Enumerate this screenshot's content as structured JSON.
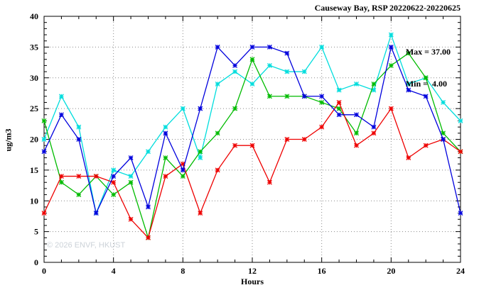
{
  "header": {
    "title": "Causeway Bay, RSP 20220622-20220625"
  },
  "annotation": {
    "max_label": "Max = 37.00",
    "min_label": "Min =  4.00"
  },
  "watermark": "© 2026 ENVF, HKUST",
  "chart_data": {
    "type": "line",
    "title": "Causeway Bay, RSP 20220622-20220625",
    "xlabel": "Hours",
    "ylabel": "ug/m3",
    "xlim": [
      0,
      24
    ],
    "ylim": [
      0,
      40
    ],
    "xticks": [
      0,
      4,
      8,
      12,
      16,
      20,
      24
    ],
    "yticks": [
      0,
      5,
      10,
      15,
      20,
      25,
      30,
      35,
      40
    ],
    "x_minor_step": 1,
    "y_minor_step": 1,
    "grid": true,
    "legend": "none",
    "x": [
      0,
      1,
      2,
      3,
      4,
      5,
      6,
      7,
      8,
      9,
      10,
      11,
      12,
      13,
      14,
      15,
      16,
      17,
      18,
      19,
      20,
      21,
      22,
      23,
      24
    ],
    "series": [
      {
        "name": "cyan",
        "color": "#00dddd",
        "values": [
          20,
          27,
          22,
          8,
          15,
          14,
          18,
          22,
          25,
          17,
          29,
          31,
          29,
          32,
          31,
          31,
          35,
          28,
          29,
          28,
          37,
          29,
          30,
          26,
          23
        ]
      },
      {
        "name": "green",
        "color": "#00bb00",
        "values": [
          23,
          13,
          11,
          14,
          11,
          13,
          4,
          17,
          14,
          18,
          21,
          25,
          33,
          27,
          27,
          27,
          26,
          25,
          21,
          29,
          32,
          34,
          30,
          21,
          18
        ]
      },
      {
        "name": "red",
        "color": "#ee0000",
        "values": [
          8,
          14,
          14,
          14,
          13,
          7,
          4,
          14,
          16,
          8,
          15,
          19,
          19,
          13,
          20,
          20,
          22,
          26,
          19,
          21,
          25,
          17,
          19,
          20,
          18
        ]
      },
      {
        "name": "blue",
        "color": "#0000dd",
        "values": [
          18,
          24,
          20,
          8,
          14,
          17,
          9,
          21,
          15,
          25,
          35,
          32,
          35,
          35,
          34,
          27,
          27,
          24,
          24,
          22,
          35,
          28,
          27,
          20,
          8
        ]
      }
    ],
    "stats": {
      "max": 37.0,
      "min": 4.0
    }
  }
}
